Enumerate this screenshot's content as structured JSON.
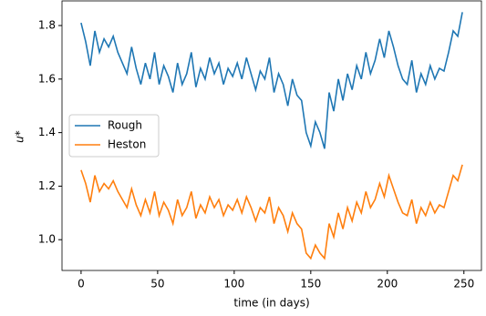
{
  "chart_data": {
    "type": "line",
    "xlabel": "time (in days)",
    "ylabel": "u*",
    "x": [
      0,
      3,
      6,
      9,
      12,
      15,
      18,
      21,
      24,
      27,
      30,
      33,
      36,
      39,
      42,
      45,
      48,
      51,
      54,
      57,
      60,
      63,
      66,
      69,
      72,
      75,
      78,
      81,
      84,
      87,
      90,
      93,
      96,
      99,
      102,
      105,
      108,
      111,
      114,
      117,
      120,
      123,
      126,
      129,
      132,
      135,
      138,
      141,
      144,
      147,
      150,
      153,
      156,
      159,
      162,
      165,
      168,
      171,
      174,
      177,
      180,
      183,
      186,
      189,
      192,
      195,
      198,
      201,
      204,
      207,
      210,
      213,
      216,
      219,
      222,
      225,
      228,
      231,
      234,
      237,
      240,
      243,
      246,
      249
    ],
    "series": [
      {
        "name": "Rough",
        "color": "#1f77b4",
        "values": [
          1.81,
          1.74,
          1.65,
          1.78,
          1.7,
          1.75,
          1.72,
          1.76,
          1.7,
          1.66,
          1.62,
          1.72,
          1.64,
          1.58,
          1.66,
          1.6,
          1.7,
          1.58,
          1.65,
          1.61,
          1.55,
          1.66,
          1.58,
          1.62,
          1.7,
          1.57,
          1.64,
          1.6,
          1.68,
          1.62,
          1.66,
          1.58,
          1.64,
          1.61,
          1.66,
          1.6,
          1.68,
          1.62,
          1.56,
          1.63,
          1.6,
          1.68,
          1.55,
          1.62,
          1.58,
          1.5,
          1.6,
          1.54,
          1.52,
          1.4,
          1.35,
          1.44,
          1.4,
          1.34,
          1.55,
          1.48,
          1.6,
          1.52,
          1.62,
          1.56,
          1.65,
          1.6,
          1.7,
          1.62,
          1.67,
          1.75,
          1.68,
          1.78,
          1.72,
          1.65,
          1.6,
          1.58,
          1.67,
          1.55,
          1.62,
          1.58,
          1.65,
          1.6,
          1.64,
          1.63,
          1.7,
          1.78,
          1.76,
          1.85
        ]
      },
      {
        "name": "Heston",
        "color": "#ff7f0e",
        "values": [
          1.26,
          1.21,
          1.14,
          1.24,
          1.18,
          1.21,
          1.19,
          1.22,
          1.18,
          1.15,
          1.12,
          1.19,
          1.13,
          1.09,
          1.15,
          1.1,
          1.18,
          1.09,
          1.14,
          1.11,
          1.06,
          1.15,
          1.09,
          1.12,
          1.18,
          1.08,
          1.13,
          1.1,
          1.16,
          1.12,
          1.15,
          1.09,
          1.13,
          1.11,
          1.15,
          1.1,
          1.16,
          1.12,
          1.07,
          1.12,
          1.1,
          1.16,
          1.06,
          1.12,
          1.09,
          1.03,
          1.1,
          1.06,
          1.04,
          0.95,
          0.93,
          0.98,
          0.95,
          0.93,
          1.06,
          1.01,
          1.1,
          1.04,
          1.12,
          1.07,
          1.14,
          1.1,
          1.18,
          1.12,
          1.15,
          1.21,
          1.16,
          1.24,
          1.19,
          1.14,
          1.1,
          1.09,
          1.15,
          1.06,
          1.12,
          1.09,
          1.14,
          1.1,
          1.13,
          1.12,
          1.18,
          1.24,
          1.22,
          1.28
        ]
      }
    ],
    "xlim": [
      -12.45,
      261.45
    ],
    "xticks": [
      0,
      50,
      100,
      150,
      200,
      250
    ],
    "ylim": [
      0.885,
      1.892
    ],
    "yticks": [
      {
        "value": 1.0,
        "label": "1.0"
      },
      {
        "value": 1.2,
        "label": "1.2"
      },
      {
        "value": 1.4,
        "label": "1.4"
      },
      {
        "value": 1.6,
        "label": "1.6"
      },
      {
        "value": 1.8,
        "label": "1.8"
      }
    ],
    "grid": false,
    "legend": "center left"
  }
}
